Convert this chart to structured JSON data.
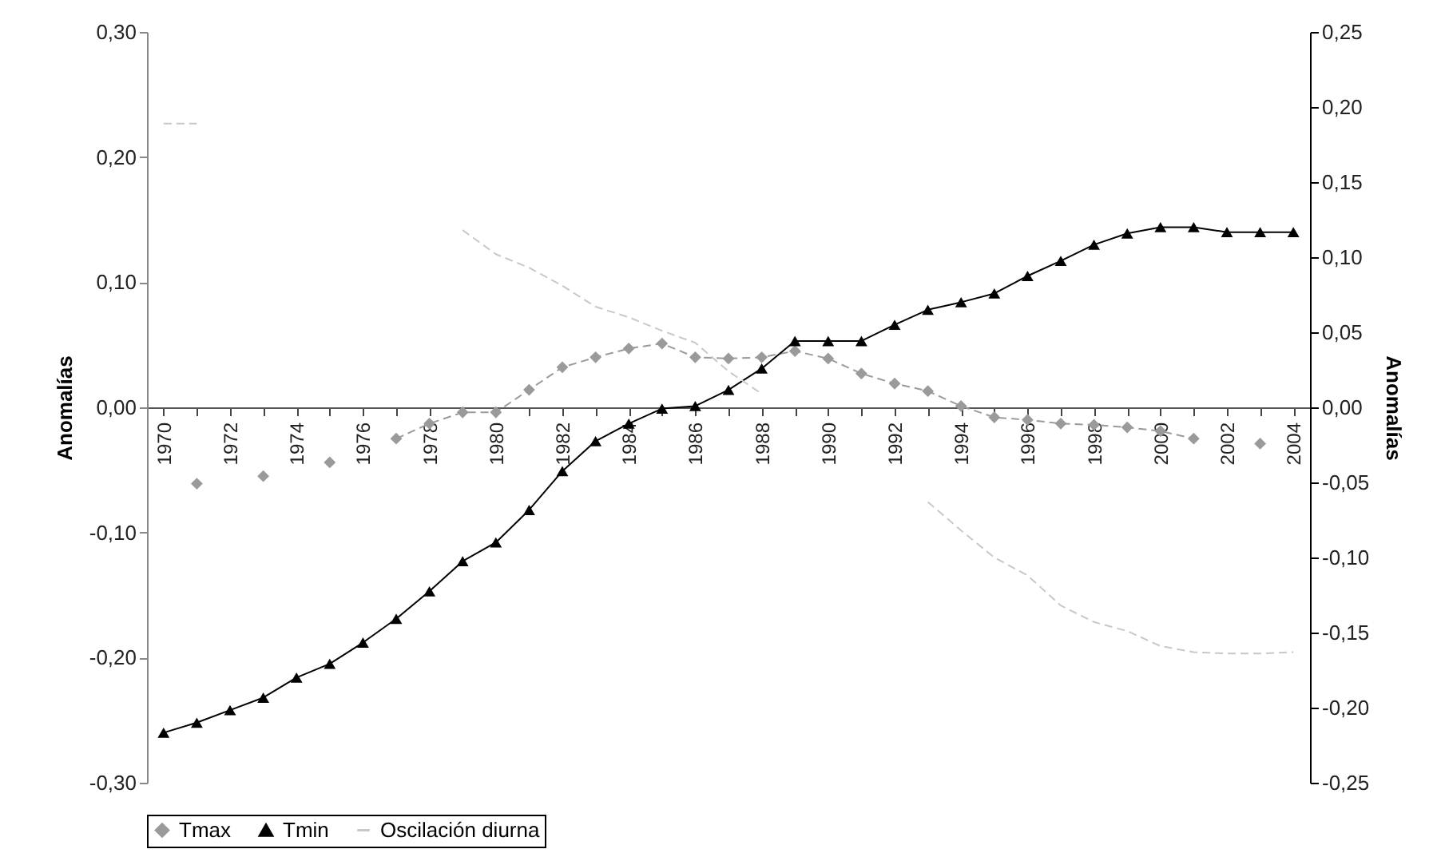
{
  "chart_data": {
    "type": "line",
    "categories": [
      "1970",
      null,
      "1972",
      null,
      "1974",
      null,
      "1976",
      null,
      "1978",
      null,
      "1980",
      null,
      "1982",
      null,
      "1984",
      null,
      "1986",
      null,
      "1988",
      null,
      "1990",
      null,
      "1992",
      null,
      "1994",
      null,
      "1996",
      null,
      "1998",
      null,
      "2000",
      null,
      "2002",
      null,
      "2004"
    ],
    "series": [
      {
        "name": "Tmax",
        "color": "#9a9a9a",
        "marker": "diamond",
        "line_style": "dashed",
        "values": [
          null,
          -0.061,
          null,
          -0.055,
          null,
          -0.044,
          null,
          -0.025,
          -0.013,
          -0.004,
          -0.004,
          0.014,
          0.032,
          0.04,
          0.047,
          0.051,
          0.04,
          0.039,
          0.04,
          0.045,
          0.039,
          0.027,
          0.019,
          0.013,
          0.001,
          -0.008,
          -0.01,
          -0.013,
          -0.014,
          -0.016,
          -0.019,
          -0.025,
          null,
          -0.029,
          null
        ]
      },
      {
        "name": "Tmin",
        "color": "#000000",
        "marker": "triangle",
        "line_style": "solid",
        "values": [
          -0.26,
          -0.252,
          -0.242,
          -0.232,
          -0.216,
          -0.205,
          -0.188,
          -0.169,
          -0.147,
          -0.123,
          -0.108,
          -0.082,
          -0.051,
          -0.027,
          -0.013,
          -0.001,
          0.001,
          0.014,
          0.031,
          0.053,
          0.053,
          0.053,
          0.066,
          0.078,
          0.084,
          0.091,
          0.105,
          0.117,
          0.13,
          0.139,
          0.144,
          0.144,
          0.14,
          0.14,
          0.14
        ]
      },
      {
        "name": "Oscilación diurna",
        "color": "#c8c8c8",
        "marker": "none",
        "line_style": "dashed",
        "axis": "y2",
        "values": [
          0.189,
          0.189,
          null,
          null,
          null,
          null,
          null,
          null,
          null,
          0.118,
          0.102,
          0.093,
          0.081,
          0.067,
          0.06,
          0.051,
          0.043,
          0.024,
          0.009,
          null,
          null,
          null,
          null,
          -0.063,
          -0.082,
          -0.1,
          -0.112,
          -0.132,
          -0.143,
          -0.149,
          -0.159,
          -0.163,
          -0.164,
          -0.164,
          -0.163
        ]
      }
    ],
    "ylabel": "Anomalías",
    "y2label": "Anomalías",
    "ylim": [
      -0.3,
      0.3
    ],
    "yticks": [
      {
        "value": -0.3,
        "label": "-0,30"
      },
      {
        "value": -0.2,
        "label": "-0,20"
      },
      {
        "value": -0.1,
        "label": "-0,10"
      },
      {
        "value": 0,
        "label": "0,00"
      },
      {
        "value": 0.1,
        "label": "0,10"
      },
      {
        "value": 0.2,
        "label": "0,20"
      },
      {
        "value": 0.3,
        "label": "0,30"
      }
    ],
    "y2lim": [
      -0.25,
      0.25
    ],
    "y2ticks": [
      {
        "value": -0.25,
        "label": "-0,25"
      },
      {
        "value": -0.2,
        "label": "-0,20"
      },
      {
        "value": -0.15,
        "label": "-0,15"
      },
      {
        "value": -0.1,
        "label": "-0,10"
      },
      {
        "value": -0.05,
        "label": "-0,05"
      },
      {
        "value": 0,
        "label": "0,00"
      },
      {
        "value": 0.05,
        "label": "0,05"
      },
      {
        "value": 0.1,
        "label": "0,10"
      },
      {
        "value": 0.15,
        "label": "0,15"
      },
      {
        "value": 0.2,
        "label": "0,20"
      },
      {
        "value": 0.25,
        "label": "0,25"
      }
    ],
    "legend": "bottom",
    "grid": false
  }
}
